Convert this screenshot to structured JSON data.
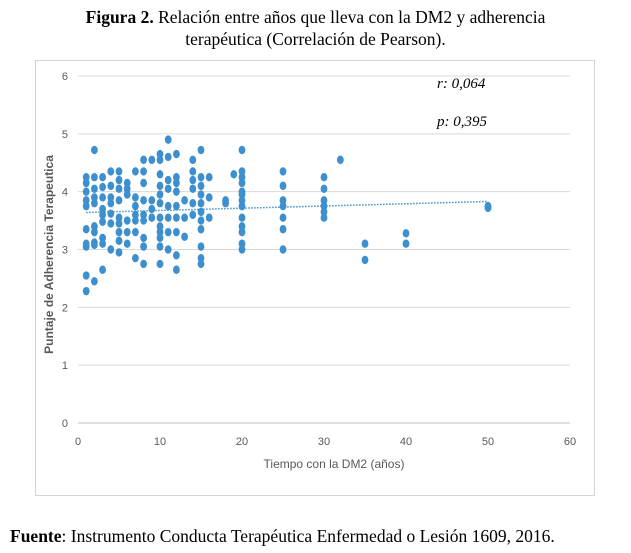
{
  "caption": {
    "label": "Figura 2.",
    "line1": " Relación entre años que lleva con la DM2 y adherencia",
    "line2": "terapéutica  (Correlación de Pearson)."
  },
  "source": {
    "label": "Fuente",
    "text": ": Instrumento Conducta Terapéutica Enfermedad o Lesión 1609, 2016."
  },
  "chart_data": {
    "type": "scatter",
    "xlabel": "Tiempo con la DM2 (años)",
    "ylabel": "Puntaje de Adherencia Terapeutica",
    "xlim": [
      0,
      60
    ],
    "ylim": [
      0,
      6
    ],
    "x_ticks": [
      "0",
      "10",
      "20",
      "30",
      "40",
      "50",
      "60"
    ],
    "y_ticks": [
      "0",
      "1",
      "2",
      "3",
      "4",
      "5",
      "6"
    ],
    "grid": "horizontal",
    "annotations": [
      "r: 0,064",
      "p: 0,395"
    ],
    "trendline": {
      "x": [
        1,
        50
      ],
      "y": [
        3.64,
        3.83
      ]
    },
    "colors": {
      "points": "#3d8fcd",
      "trend": "#3d8fcd",
      "grid": "#d9d9d9",
      "axis_text": "#595959"
    },
    "points": [
      [
        1,
        4.25
      ],
      [
        1,
        4.15
      ],
      [
        1,
        4.0
      ],
      [
        1,
        3.85
      ],
      [
        1,
        3.75
      ],
      [
        1,
        3.35
      ],
      [
        1,
        3.1
      ],
      [
        1,
        3.05
      ],
      [
        1,
        2.55
      ],
      [
        1,
        2.28
      ],
      [
        2,
        4.72
      ],
      [
        2,
        4.25
      ],
      [
        2,
        4.05
      ],
      [
        2,
        3.9
      ],
      [
        2,
        3.8
      ],
      [
        2,
        3.4
      ],
      [
        2,
        3.3
      ],
      [
        2,
        3.12
      ],
      [
        2,
        3.08
      ],
      [
        2,
        2.45
      ],
      [
        3,
        4.25
      ],
      [
        3,
        4.08
      ],
      [
        3,
        3.9
      ],
      [
        3,
        3.7
      ],
      [
        3,
        3.6
      ],
      [
        3,
        3.48
      ],
      [
        3,
        3.2
      ],
      [
        3,
        3.1
      ],
      [
        3,
        2.65
      ],
      [
        4,
        4.35
      ],
      [
        4,
        4.1
      ],
      [
        4,
        3.9
      ],
      [
        4,
        3.8
      ],
      [
        4,
        3.62
      ],
      [
        4,
        3.45
      ],
      [
        4,
        3.0
      ],
      [
        5,
        4.35
      ],
      [
        5,
        4.2
      ],
      [
        5,
        4.05
      ],
      [
        5,
        3.85
      ],
      [
        5,
        3.55
      ],
      [
        5,
        3.45
      ],
      [
        5,
        3.3
      ],
      [
        5,
        3.15
      ],
      [
        5,
        2.95
      ],
      [
        6,
        4.15
      ],
      [
        6,
        4.05
      ],
      [
        6,
        3.95
      ],
      [
        6,
        3.5
      ],
      [
        6,
        3.3
      ],
      [
        6,
        3.1
      ],
      [
        7,
        4.35
      ],
      [
        7,
        3.9
      ],
      [
        7,
        3.75
      ],
      [
        7,
        3.6
      ],
      [
        7,
        3.5
      ],
      [
        7,
        3.3
      ],
      [
        7,
        2.85
      ],
      [
        8,
        4.55
      ],
      [
        8,
        4.35
      ],
      [
        8,
        4.15
      ],
      [
        8,
        3.85
      ],
      [
        8,
        3.6
      ],
      [
        8,
        3.5
      ],
      [
        8,
        3.2
      ],
      [
        8,
        3.05
      ],
      [
        8,
        2.75
      ],
      [
        9,
        4.55
      ],
      [
        9,
        3.85
      ],
      [
        9,
        3.7
      ],
      [
        9,
        3.55
      ],
      [
        10,
        4.65
      ],
      [
        10,
        4.55
      ],
      [
        10,
        4.3
      ],
      [
        10,
        4.1
      ],
      [
        10,
        3.95
      ],
      [
        10,
        3.8
      ],
      [
        10,
        3.55
      ],
      [
        10,
        3.4
      ],
      [
        10,
        3.3
      ],
      [
        10,
        3.2
      ],
      [
        10,
        3.05
      ],
      [
        10,
        2.75
      ],
      [
        11,
        4.9
      ],
      [
        11,
        4.6
      ],
      [
        11,
        4.2
      ],
      [
        11,
        4.05
      ],
      [
        11,
        3.75
      ],
      [
        11,
        3.55
      ],
      [
        11,
        3.3
      ],
      [
        11,
        3.0
      ],
      [
        12,
        4.65
      ],
      [
        12,
        4.25
      ],
      [
        12,
        4.15
      ],
      [
        12,
        4.0
      ],
      [
        12,
        3.75
      ],
      [
        12,
        3.55
      ],
      [
        12,
        3.3
      ],
      [
        12,
        2.9
      ],
      [
        12,
        2.65
      ],
      [
        13,
        3.85
      ],
      [
        13,
        3.55
      ],
      [
        13,
        3.22
      ],
      [
        14,
        4.55
      ],
      [
        14,
        4.35
      ],
      [
        14,
        4.2
      ],
      [
        14,
        4.05
      ],
      [
        14,
        3.8
      ],
      [
        14,
        3.6
      ],
      [
        15,
        4.72
      ],
      [
        15,
        4.25
      ],
      [
        15,
        4.1
      ],
      [
        15,
        3.95
      ],
      [
        15,
        3.8
      ],
      [
        15,
        3.65
      ],
      [
        15,
        3.5
      ],
      [
        15,
        3.35
      ],
      [
        15,
        3.05
      ],
      [
        15,
        2.85
      ],
      [
        15,
        2.75
      ],
      [
        16,
        4.25
      ],
      [
        16,
        3.9
      ],
      [
        16,
        3.55
      ],
      [
        18,
        3.85
      ],
      [
        18,
        3.8
      ],
      [
        19,
        4.3
      ],
      [
        20,
        4.72
      ],
      [
        20,
        4.35
      ],
      [
        20,
        4.25
      ],
      [
        20,
        4.15
      ],
      [
        20,
        4.0
      ],
      [
        20,
        3.95
      ],
      [
        20,
        3.85
      ],
      [
        20,
        3.75
      ],
      [
        20,
        3.55
      ],
      [
        20,
        3.4
      ],
      [
        20,
        3.3
      ],
      [
        20,
        3.1
      ],
      [
        20,
        3.0
      ],
      [
        25,
        4.35
      ],
      [
        25,
        4.1
      ],
      [
        25,
        3.85
      ],
      [
        25,
        3.75
      ],
      [
        25,
        3.55
      ],
      [
        25,
        3.35
      ],
      [
        25,
        3.0
      ],
      [
        30,
        4.25
      ],
      [
        30,
        4.05
      ],
      [
        30,
        3.85
      ],
      [
        30,
        3.75
      ],
      [
        30,
        3.65
      ],
      [
        30,
        3.55
      ],
      [
        32,
        4.55
      ],
      [
        35,
        3.1
      ],
      [
        35,
        2.82
      ],
      [
        40,
        3.28
      ],
      [
        40,
        3.1
      ],
      [
        50,
        3.75
      ],
      [
        50,
        3.72
      ]
    ]
  }
}
